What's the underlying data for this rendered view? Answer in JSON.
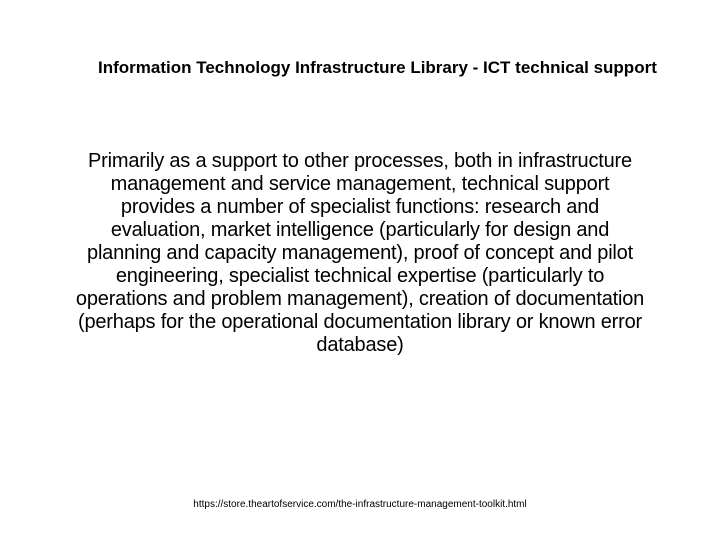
{
  "slide": {
    "title": "Information Technology Infrastructure Library - ICT technical support",
    "body": " Primarily as a support to other processes, both in infrastructure management and service management, technical support provides a number of specialist functions: research and evaluation, market intelligence (particularly for design and planning and capacity management), proof of concept and pilot engineering, specialist technical expertise (particularly to operations and problem management), creation of documentation (perhaps for the operational documentation library or known error database)",
    "footer": "https://store.theartofservice.com/the-infrastructure-management-toolkit.html"
  },
  "styling": {
    "background_color": "#ffffff",
    "title_fontsize": 17,
    "title_fontweight": "bold",
    "title_color": "#000000",
    "body_fontsize": 20,
    "body_color": "#000000",
    "footer_fontsize": 10,
    "footer_color": "#000000",
    "font_family": "Arial"
  }
}
